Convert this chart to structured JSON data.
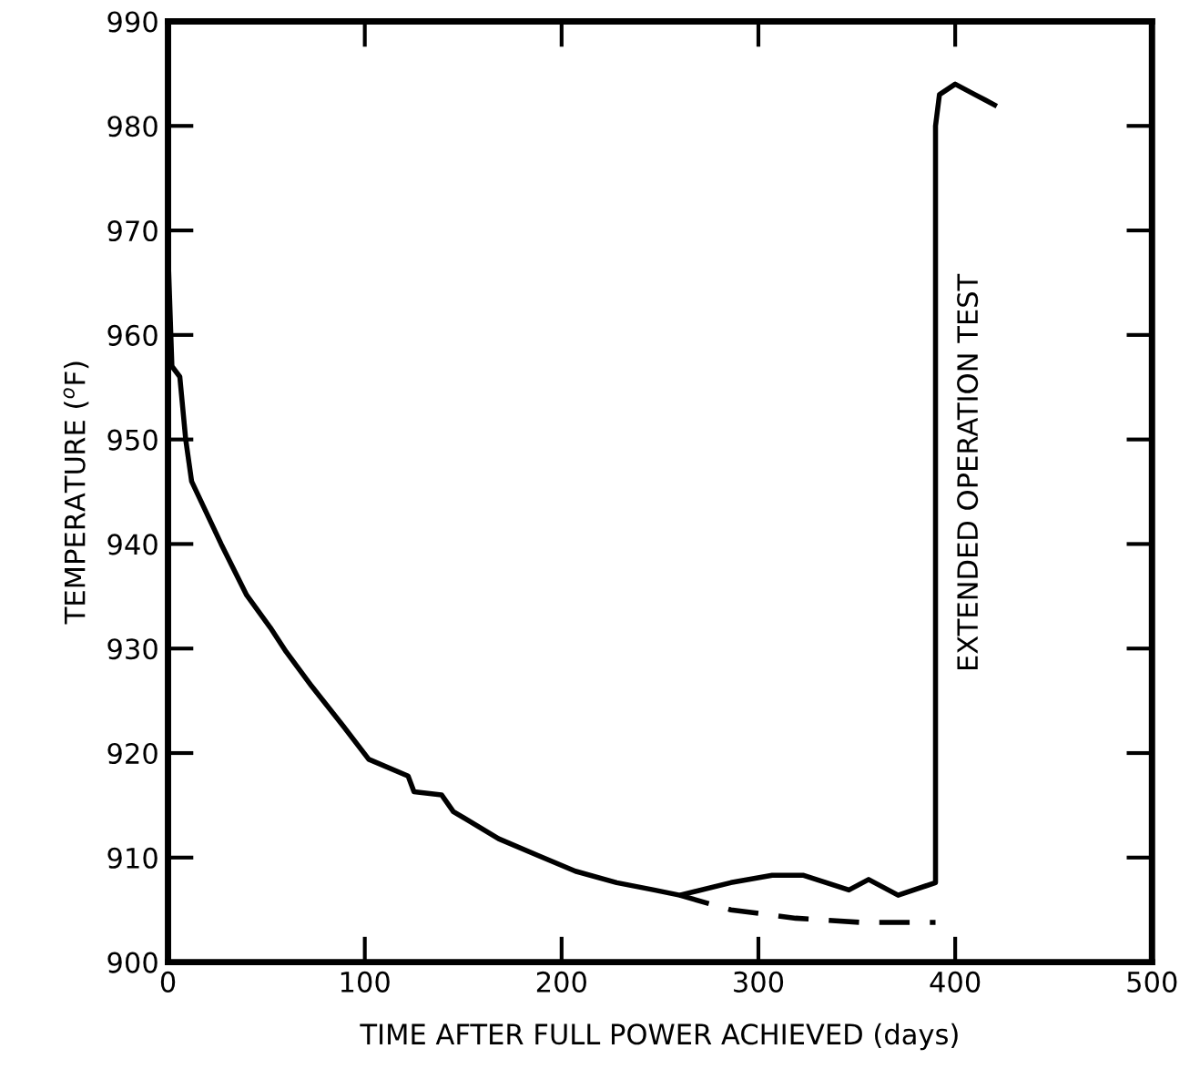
{
  "chart_data": {
    "type": "line",
    "xlabel": "TIME AFTER FULL POWER ACHIEVED (days)",
    "ylabel": "TEMPERATURE ($^{o}$F)",
    "xlim": [
      0,
      500
    ],
    "xticks": [
      0,
      100,
      200,
      300,
      400,
      500
    ],
    "ylim": [
      900,
      990
    ],
    "yticks": [
      900,
      910,
      920,
      930,
      940,
      950,
      960,
      970,
      980,
      990
    ],
    "grid": false,
    "marker": "none",
    "series": [
      {
        "color": "#000000",
        "line_style": "solid",
        "x": [
          0,
          2,
          4,
          6,
          9,
          12,
          27,
          40,
          52,
          60,
          73,
          89,
          102,
          122,
          125,
          139,
          145,
          168,
          188,
          207,
          228,
          247,
          260,
          286,
          307,
          323,
          346,
          356,
          371,
          390,
          390,
          392,
          400,
          405,
          410,
          415,
          420
        ],
        "values": [
          968,
          957,
          956.5,
          956,
          950,
          946,
          940,
          935.1,
          932,
          929.7,
          926.4,
          922.6,
          919.4,
          917.8,
          916.3,
          916,
          914.4,
          911.8,
          910.2,
          908.7,
          907.6,
          906.9,
          906.4,
          907.6,
          908.3,
          908.3,
          906.9,
          907.9,
          906.4,
          907.6,
          980,
          983,
          984,
          983.5,
          983,
          982.5,
          982
        ]
      },
      {
        "color": "#000000",
        "line_style": "dashed",
        "x": [
          260,
          286,
          319,
          352,
          390
        ],
        "values": [
          906.4,
          905,
          904.2,
          903.8,
          903.8
        ]
      }
    ],
    "annotations": [
      "EXTENDED OPERATION TEST"
    ]
  }
}
